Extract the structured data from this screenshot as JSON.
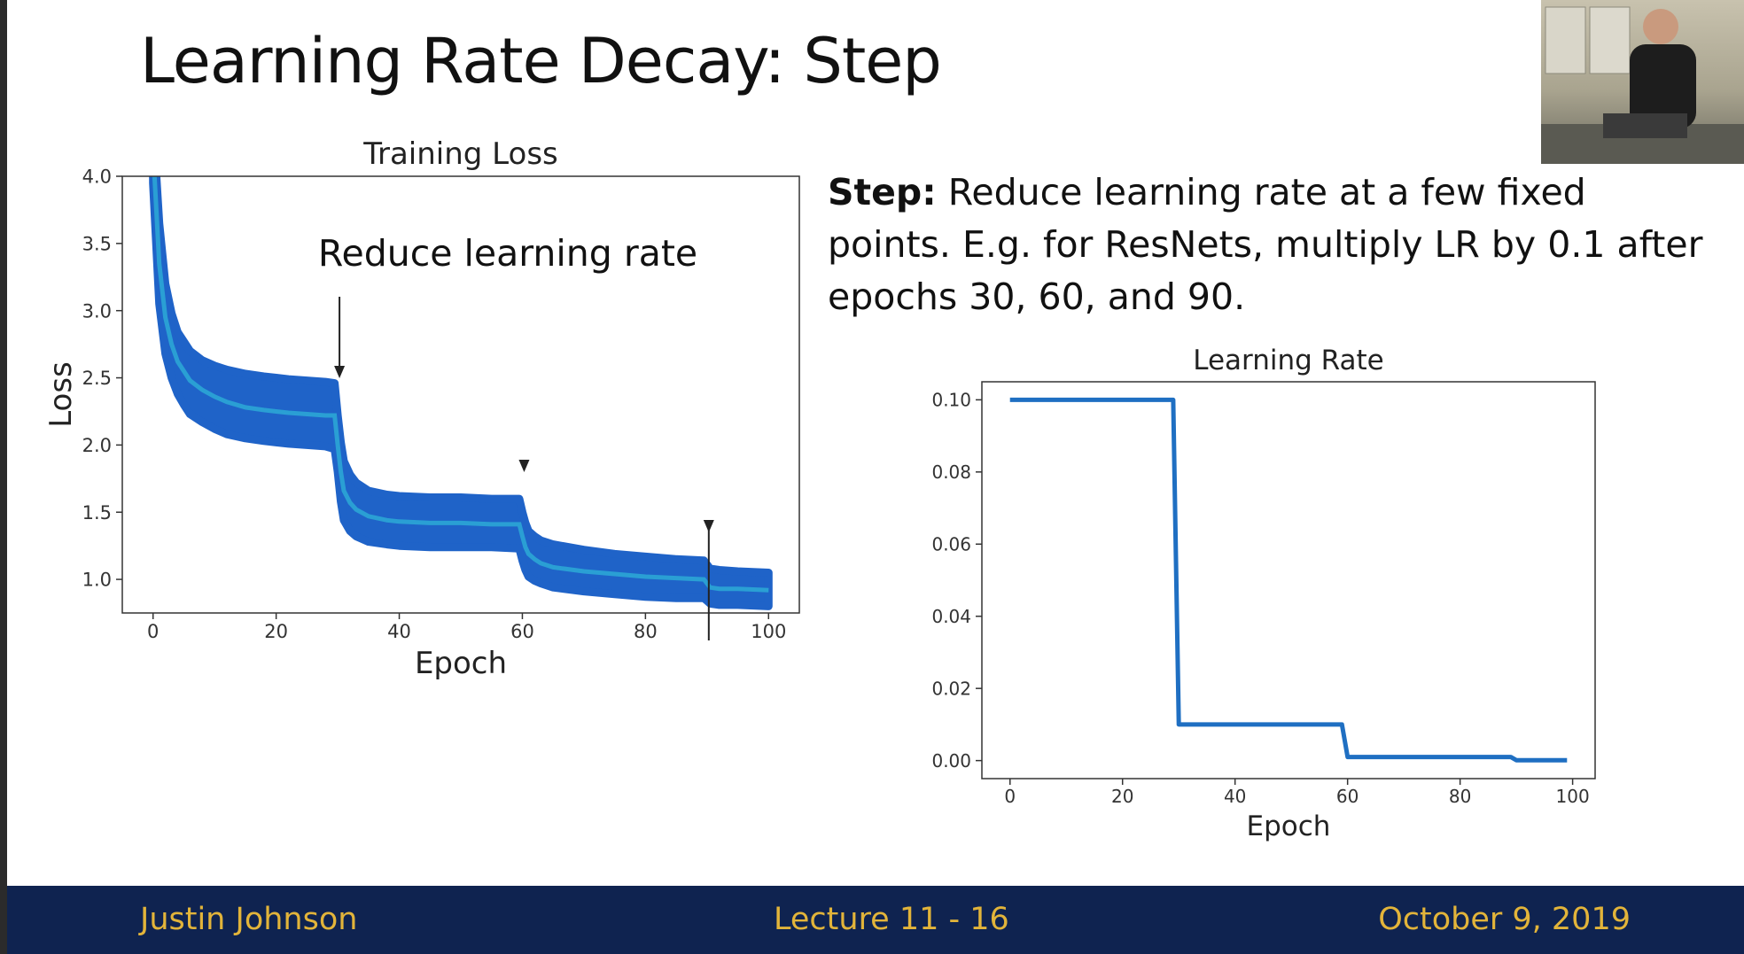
{
  "slide": {
    "title_main": "Learning Rate Decay: ",
    "title_sub": "Step",
    "description_lead": "Step:",
    "description_rest": " Reduce learning rate at a few fixed points. E.g. for ResNets, multiply LR by 0.1 after epochs 30, 60, and 90."
  },
  "footer": {
    "presenter": "Justin Johnson",
    "lecture": "Lecture 11 - 16",
    "date": "October 9, 2019"
  },
  "colors": {
    "band": "#1f63c8",
    "mean_line": "#2a9fd4",
    "lr_line": "#1f6fc2",
    "footer_bg": "#0f2350",
    "footer_text": "#e2b43a"
  },
  "chart_data": [
    {
      "type": "area",
      "title": "Training Loss",
      "xlabel": "Epoch",
      "ylabel": "Loss",
      "xlim": [
        -5,
        105
      ],
      "ylim": [
        0.75,
        4.0
      ],
      "x_ticks": [
        0,
        20,
        40,
        60,
        80,
        100
      ],
      "y_ticks": [
        1.0,
        1.5,
        2.0,
        2.5,
        3.0,
        3.5,
        4.0
      ],
      "y_tick_labels": [
        "1.0",
        "1.5",
        "2.0",
        "2.5",
        "3.0",
        "3.5",
        "4.0"
      ],
      "annotation": "Reduce learning rate",
      "annotation_epochs": [
        30,
        60,
        90
      ],
      "series": [
        {
          "x": [
            0,
            1,
            2,
            3,
            4,
            5,
            6,
            8,
            10,
            12,
            15,
            18,
            20,
            22,
            25,
            28,
            29.5,
            30,
            30.5,
            31,
            32,
            33,
            35,
            38,
            40,
            45,
            50,
            55,
            59.5,
            60,
            60.5,
            61,
            62,
            63,
            65,
            70,
            75,
            80,
            85,
            89.5,
            90,
            90.5,
            92,
            95,
            100
          ],
          "mean": [
            4.2,
            3.35,
            2.95,
            2.75,
            2.62,
            2.55,
            2.48,
            2.41,
            2.36,
            2.32,
            2.28,
            2.26,
            2.25,
            2.24,
            2.23,
            2.22,
            2.22,
            2.0,
            1.8,
            1.66,
            1.57,
            1.52,
            1.47,
            1.44,
            1.43,
            1.42,
            1.42,
            1.41,
            1.41,
            1.32,
            1.24,
            1.19,
            1.15,
            1.12,
            1.09,
            1.06,
            1.04,
            1.02,
            1.01,
            1.0,
            0.97,
            0.94,
            0.93,
            0.93,
            0.92
          ],
          "lower": [
            3.95,
            3.05,
            2.68,
            2.5,
            2.38,
            2.3,
            2.23,
            2.17,
            2.12,
            2.08,
            2.05,
            2.03,
            2.02,
            2.01,
            2.0,
            1.99,
            1.97,
            1.8,
            1.58,
            1.44,
            1.36,
            1.32,
            1.28,
            1.26,
            1.25,
            1.24,
            1.24,
            1.24,
            1.23,
            1.14,
            1.07,
            1.02,
            0.99,
            0.97,
            0.94,
            0.91,
            0.89,
            0.87,
            0.86,
            0.86,
            0.84,
            0.82,
            0.81,
            0.81,
            0.8
          ],
          "upper": [
            4.4,
            3.65,
            3.2,
            2.98,
            2.84,
            2.77,
            2.7,
            2.63,
            2.59,
            2.56,
            2.53,
            2.51,
            2.5,
            2.49,
            2.48,
            2.47,
            2.46,
            2.22,
            2.02,
            1.88,
            1.78,
            1.72,
            1.66,
            1.63,
            1.62,
            1.61,
            1.61,
            1.6,
            1.6,
            1.5,
            1.42,
            1.36,
            1.32,
            1.29,
            1.26,
            1.22,
            1.19,
            1.17,
            1.15,
            1.14,
            1.11,
            1.08,
            1.07,
            1.06,
            1.05
          ]
        }
      ]
    },
    {
      "type": "line",
      "title": "Learning Rate",
      "xlabel": "Epoch",
      "ylabel": "",
      "xlim": [
        -5,
        104
      ],
      "ylim": [
        -0.005,
        0.105
      ],
      "x_ticks": [
        0,
        20,
        40,
        60,
        80,
        100
      ],
      "y_ticks": [
        0.0,
        0.02,
        0.04,
        0.06,
        0.08,
        0.1
      ],
      "y_tick_labels": [
        "0.00",
        "0.02",
        "0.04",
        "0.06",
        "0.08",
        "0.10"
      ],
      "series": [
        {
          "x": [
            0,
            29,
            30,
            59,
            60,
            89,
            90,
            99
          ],
          "y": [
            0.1,
            0.1,
            0.01,
            0.01,
            0.001,
            0.001,
            0.0001,
            0.0001
          ]
        }
      ]
    }
  ]
}
